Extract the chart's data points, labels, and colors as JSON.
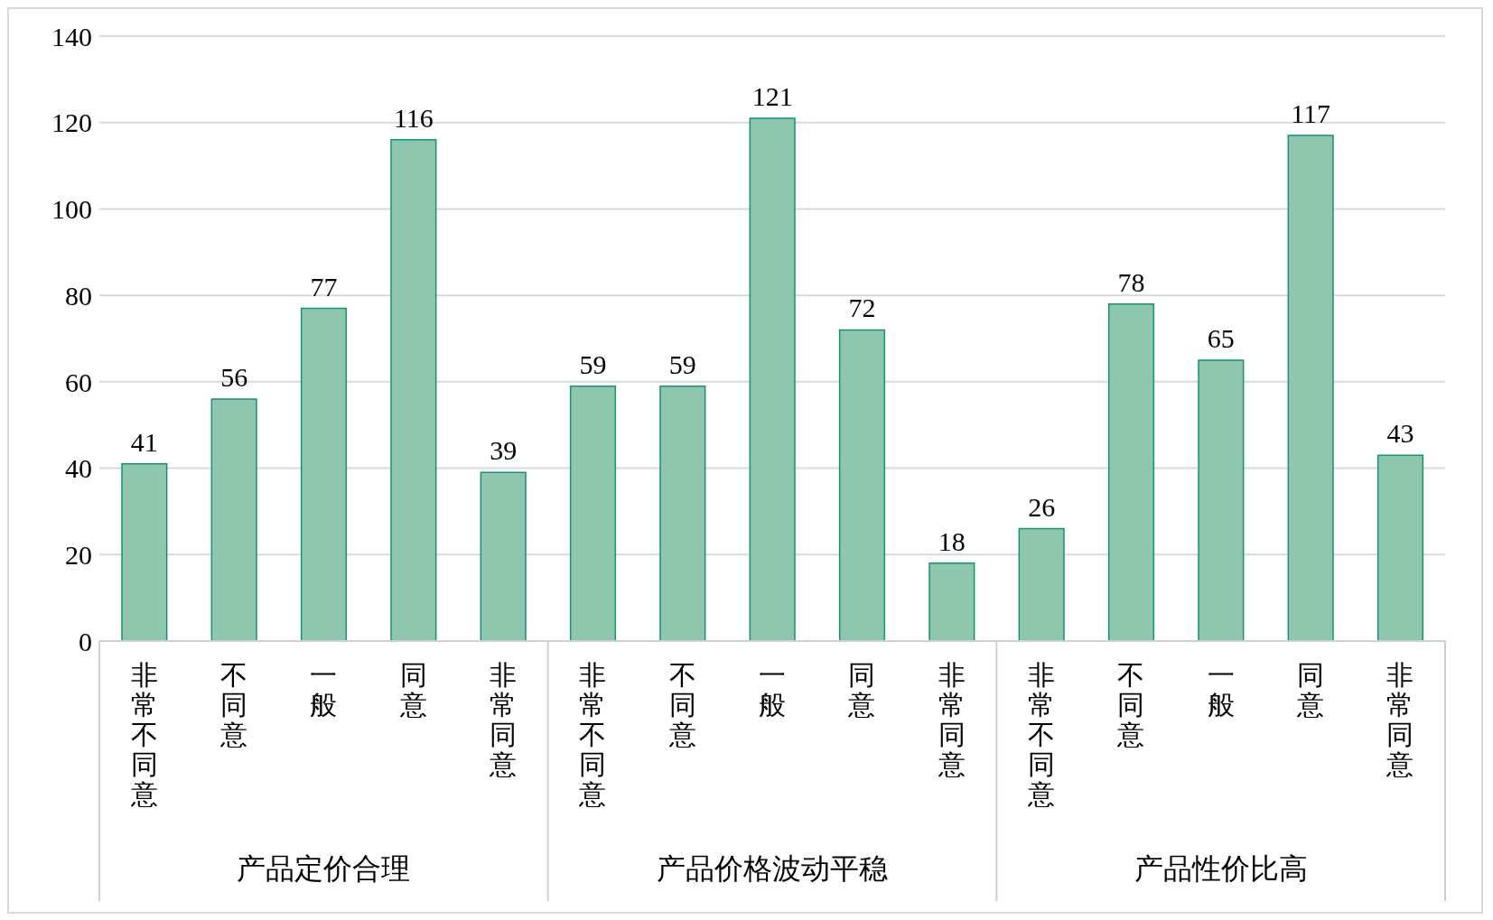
{
  "chart_data": {
    "type": "bar",
    "categories": [
      "非常不同意",
      "不同意",
      "一般",
      "同意",
      "非常同意",
      "非常不同意",
      "不同意",
      "一般",
      "同意",
      "非常同意",
      "非常不同意",
      "不同意",
      "一般",
      "同意",
      "非常同意"
    ],
    "values": [
      41,
      56,
      77,
      116,
      39,
      59,
      59,
      121,
      72,
      18,
      26,
      78,
      65,
      117,
      43
    ],
    "color": "#8fc6ae",
    "ylim": [
      0,
      140
    ],
    "yticks": [
      0,
      20,
      40,
      60,
      80,
      100,
      120,
      140
    ],
    "grid": "y",
    "data_labels": true,
    "annotations": [
      "产品定价合理",
      "产品价格波动平稳",
      "产品性价比高"
    ]
  }
}
